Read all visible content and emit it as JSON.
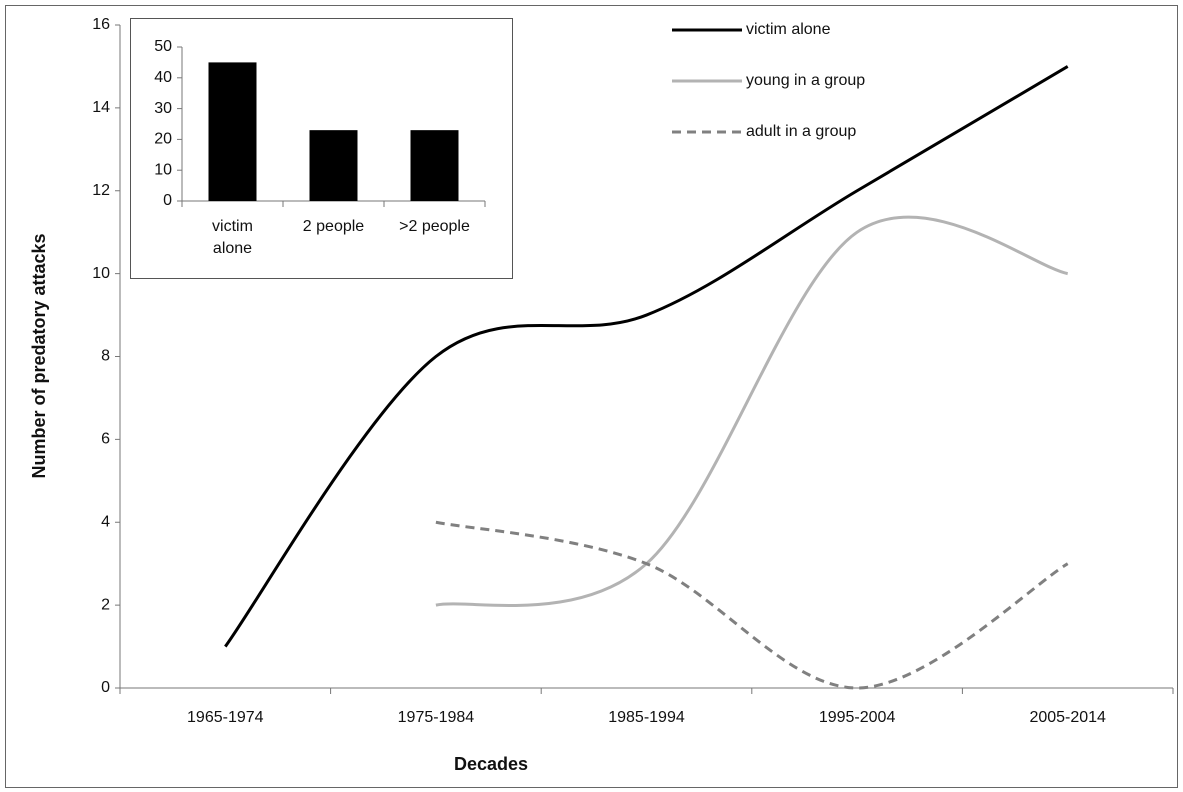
{
  "chart_data": [
    {
      "type": "line",
      "x_label": "Decades",
      "y_label": "Number of predatory attacks",
      "categories": [
        "1965-1974",
        "1975-1984",
        "1985-1994",
        "1995-2004",
        "2005-2014"
      ],
      "series": [
        {
          "name": "victim alone",
          "color": "#000000",
          "style": "solid",
          "values": [
            1,
            8,
            9,
            12,
            15
          ]
        },
        {
          "name": "young in a group",
          "color": "#b3b3b3",
          "style": "solid",
          "values": [
            null,
            2,
            3,
            11,
            10
          ]
        },
        {
          "name": "adult in a group",
          "color": "#808080",
          "style": "dashed",
          "values": [
            null,
            4,
            3,
            0,
            3
          ]
        }
      ],
      "ylim": [
        0,
        16
      ],
      "yticks": [
        0,
        2,
        4,
        6,
        8,
        10,
        12,
        14,
        16
      ],
      "legend": "top-right",
      "grid": false
    },
    {
      "type": "bar",
      "categories": [
        "victim alone",
        "2 people",
        ">2 people"
      ],
      "values": [
        45,
        23,
        23
      ],
      "color": "#000000",
      "ylim": [
        0,
        50
      ],
      "yticks": [
        0,
        10,
        20,
        30,
        40,
        50
      ],
      "grid": false
    }
  ]
}
